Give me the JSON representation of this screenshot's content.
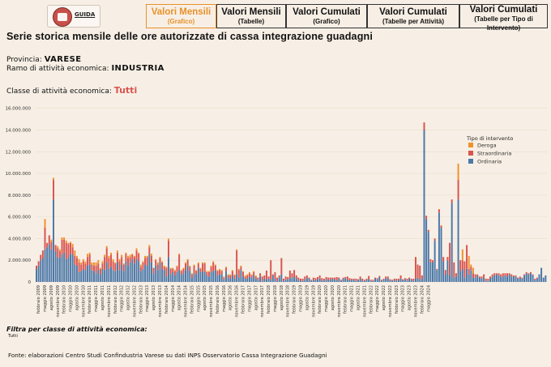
{
  "header": {
    "guida_label": "GUIDA",
    "tabs": [
      {
        "title": "Valori Mensili",
        "sub": "(Grafico)",
        "active": true
      },
      {
        "title": "Valori Mensili",
        "sub": "(Tabelle)",
        "active": false
      },
      {
        "title": "Valori Cumulati",
        "sub": "(Grafico)",
        "active": false
      },
      {
        "title": "Valori Cumulati",
        "sub": "(Tabelle per Attività)",
        "active": false
      },
      {
        "title": "Valori Cumulati",
        "sub": "(Tabelle per Tipo di Intervento)",
        "active": false
      }
    ]
  },
  "page_title": "Serie storica mensile delle ore autorizzate di cassa integrazione guadagni",
  "provincia": {
    "label": "Provincia:",
    "value": "VARESE"
  },
  "ramo": {
    "label": "Ramo di attività economica:",
    "value": "INDUSTRIA"
  },
  "classe": {
    "label": "Classe di attività economica:",
    "value": "Tutti"
  },
  "filter": {
    "label": "Filtra per classe di attività economica:",
    "value": "Tutti"
  },
  "source": "Fonte: elaborazioni Centro Studi Confindustria Varese su dati INPS Osservatorio Cassa Integrazione Guadagni",
  "colors": {
    "Deroga": "#f0922c",
    "Straordinaria": "#d9534f",
    "Ordinaria": "#4c78a8"
  },
  "chart_data": {
    "type": "bar",
    "stacked": true,
    "legend_title": "Tipo di intervento",
    "legend": [
      "Deroga",
      "Straordinaria",
      "Ordinaria"
    ],
    "y_ticks": [
      "0",
      "2.000.000",
      "4.000.000",
      "6.000.000",
      "8.000.000",
      "10.000.000",
      "12.000.000",
      "14.000.000",
      "16.000.000"
    ],
    "ylim": [
      0,
      16500000
    ],
    "start": "2009-01",
    "x_labels": [
      "febbraio 2009",
      "maggio 2009",
      "agosto 2009",
      "novembre 2009",
      "febbraio 2010",
      "maggio 2010",
      "agosto 2010",
      "novembre 2010",
      "febbraio 2011",
      "maggio 2011",
      "agosto 2011",
      "novembre 2011",
      "febbraio 2012",
      "maggio 2012",
      "agosto 2012",
      "novembre 2012",
      "febbraio 2013",
      "maggio 2013",
      "agosto 2013",
      "novembre 2013",
      "febbraio 2014",
      "maggio 2014",
      "agosto 2014",
      "novembre 2014",
      "febbraio 2015",
      "maggio 2015",
      "agosto 2015",
      "novembre 2015",
      "febbraio 2016",
      "maggio 2016",
      "agosto 2016",
      "novembre 2016",
      "febbraio 2017",
      "maggio 2017",
      "agosto 2017",
      "novembre 2017",
      "febbraio 2018",
      "maggio 2018",
      "agosto 2018",
      "novembre 2018",
      "febbraio 2019",
      "maggio 2019",
      "agosto 2019",
      "novembre 2019",
      "febbraio 2020",
      "maggio 2020",
      "agosto 2020",
      "novembre 2020",
      "febbraio 2021",
      "maggio 2021",
      "agosto 2021",
      "novembre 2021",
      "febbraio 2022",
      "maggio 2022",
      "agosto 2022",
      "novembre 2022",
      "febbraio 2023",
      "maggio 2023",
      "agosto 2023",
      "novembre 2023",
      "febbraio 2024",
      "maggio 2024"
    ],
    "series": [
      {
        "name": "Ordinaria",
        "values": [
          1200000,
          1500000,
          2000000,
          2200000,
          3000000,
          3200000,
          3500000,
          3000000,
          7600000,
          2800000,
          2300000,
          2200000,
          2500000,
          2700000,
          2100000,
          2300000,
          2600000,
          2500000,
          1600000,
          1500000,
          900000,
          1000000,
          1200000,
          1100000,
          1500000,
          1600000,
          1100000,
          1000000,
          800000,
          1100000,
          700000,
          1200000,
          1100000,
          1800000,
          1200000,
          1400000,
          1100000,
          1000000,
          1800000,
          1100000,
          1600000,
          1000000,
          1900000,
          1500000,
          1800000,
          2100000,
          1700000,
          2100000,
          1900000,
          1000000,
          1200000,
          1600000,
          1500000,
          2500000,
          1800000,
          800000,
          1500000,
          1100000,
          1800000,
          1200000,
          1100000,
          500000,
          2300000,
          700000,
          900000,
          600000,
          900000,
          1100000,
          700000,
          800000,
          1100000,
          1500000,
          1000000,
          400000,
          800000,
          700000,
          1300000,
          900000,
          1000000,
          900000,
          600000,
          500000,
          900000,
          1000000,
          1100000,
          600000,
          700000,
          700000,
          200000,
          1000000,
          400000,
          300000,
          600000,
          300000,
          700000,
          400000,
          1100000,
          500000,
          300000,
          300000,
          500000,
          400000,
          600000,
          300000,
          200000,
          500000,
          100000,
          300000,
          250000,
          300000,
          200000,
          600000,
          300000,
          100000,
          400000,
          700000,
          100000,
          200000,
          250000,
          350000,
          400000,
          500000,
          300000,
          200000,
          100000,
          100000,
          200000,
          400000,
          300000,
          100000,
          200000,
          150000,
          250000,
          300000,
          150000,
          100000,
          250000,
          200000,
          200000,
          300000,
          200000,
          150000,
          300000,
          100000,
          300000,
          350000,
          200000,
          150000,
          200000,
          200000,
          100000,
          150000,
          300000,
          100000,
          100000,
          200000,
          250000,
          100000,
          100000,
          300000,
          250000,
          450000,
          100000,
          200000,
          300000,
          400000,
          150000,
          100000,
          200000,
          100000,
          200000,
          300000,
          150000,
          250000,
          100000,
          300000,
          200000,
          100000,
          300000,
          400000,
          200000,
          300000,
          14000000,
          5800000,
          4600000,
          1800000,
          1800000,
          3800000,
          1100000,
          6400000,
          5000000,
          1900000,
          700000,
          2000000,
          600000,
          7300000,
          400000,
          500000,
          7600000,
          1000000,
          1200000,
          400000,
          1200000,
          700000,
          1100000,
          400000,
          400000,
          600000,
          400000,
          300000,
          400000,
          100000,
          100000,
          300000,
          500000,
          600000,
          700000,
          600000,
          500000,
          500000,
          600000,
          500000,
          700000,
          500000,
          500000,
          500000,
          300000,
          400000,
          300000,
          600000,
          800000,
          700000,
          800000,
          600000,
          200000,
          300000,
          700000,
          1300000,
          400000,
          600000
        ]
      },
      {
        "name": "Straordinaria",
        "values": [
          300000,
          400000,
          500000,
          700000,
          2000000,
          400000,
          800000,
          700000,
          1800000,
          600000,
          800000,
          600000,
          1400000,
          1200000,
          1500000,
          1200000,
          1000000,
          700000,
          800000,
          700000,
          900000,
          600000,
          700000,
          600000,
          800000,
          900000,
          500000,
          500000,
          700000,
          600000,
          500000,
          500000,
          1200000,
          1300000,
          1000000,
          1100000,
          800000,
          700000,
          900000,
          800000,
          700000,
          600000,
          700000,
          700000,
          500000,
          400000,
          600000,
          800000,
          700000,
          400000,
          600000,
          600000,
          800000,
          700000,
          600000,
          500000,
          500000,
          500000,
          400000,
          600000,
          300000,
          800000,
          1500000,
          500000,
          300000,
          400000,
          500000,
          1400000,
          300000,
          400000,
          600000,
          500000,
          400000,
          300000,
          700000,
          300000,
          400000,
          300000,
          700000,
          800000,
          300000,
          400000,
          500000,
          800000,
          400000,
          400000,
          400000,
          300000,
          200000,
          300000,
          200000,
          300000,
          400000,
          300000,
          2200000,
          700000,
          300000,
          400000,
          200000,
          300000,
          300000,
          200000,
          300000,
          200000,
          200000,
          300000,
          400000,
          300000,
          800000,
          200000,
          1800000,
          100000,
          600000,
          300000,
          200000,
          1500000,
          200000,
          300000,
          200000,
          700000,
          400000,
          600000,
          300000,
          200000,
          200000,
          200000,
          300000,
          200000,
          100000,
          100000,
          200000,
          200000,
          200000,
          300000,
          200000,
          200000,
          200000,
          200000,
          200000,
          100000,
          200000,
          300000,
          100000,
          100000,
          100000,
          100000,
          300000,
          200000,
          100000,
          100000,
          200000,
          100000,
          200000,
          200000,
          100000,
          100000,
          300000,
          100000,
          100000,
          100000,
          100000,
          100000,
          100000,
          100000,
          200000,
          100000,
          100000,
          100000,
          100000,
          200000,
          100000,
          300000,
          100000,
          100000,
          200000,
          100000,
          100000,
          200000,
          2000000,
          1200000,
          1300000,
          300000,
          700000,
          300000,
          200000,
          300000,
          200000,
          200000,
          100000,
          300000,
          200000,
          400000,
          400000,
          300000,
          3000000,
          300000,
          1400000,
          300000,
          1800000,
          1000000,
          800000,
          1500000,
          2200000,
          500000,
          300000,
          400000,
          300000,
          100000,
          100000,
          200000,
          300000,
          200000,
          200000,
          200000,
          200000,
          200000,
          100000,
          200000,
          200000,
          300000,
          200000,
          300000,
          100000,
          200000,
          100000,
          100000,
          100000,
          100000,
          100000,
          100000,
          100000,
          100000,
          100000,
          100000,
          100000,
          100000
        ]
      },
      {
        "name": "Deroga",
        "values": [
          0,
          0,
          0,
          0,
          800000,
          0,
          0,
          200000,
          200000,
          0,
          200000,
          200000,
          200000,
          200000,
          200000,
          100000,
          100000,
          300000,
          500000,
          200000,
          300000,
          200000,
          200000,
          200000,
          300000,
          200000,
          200000,
          300000,
          300000,
          300000,
          100000,
          200000,
          200000,
          200000,
          200000,
          200000,
          200000,
          100000,
          200000,
          200000,
          200000,
          100000,
          100000,
          200000,
          200000,
          100000,
          100000,
          200000,
          100000,
          200000,
          100000,
          200000,
          100000,
          200000,
          200000,
          0,
          100000,
          200000,
          100000,
          100000,
          100000,
          100000,
          200000,
          100000,
          100000,
          100000,
          100000,
          100000,
          100000,
          100000,
          100000,
          100000,
          100000,
          100000,
          100000,
          100000,
          100000,
          100000,
          100000,
          100000,
          100000,
          100000,
          100000,
          100000,
          100000,
          100000,
          100000,
          100000,
          100000,
          100000,
          100000,
          100000,
          100000,
          100000,
          100000,
          100000,
          100000,
          100000,
          100000,
          100000,
          100000,
          100000,
          100000,
          100000,
          0,
          0,
          0,
          0,
          0,
          0,
          0,
          0,
          0,
          0,
          0,
          0,
          0,
          0,
          0,
          0,
          0,
          0,
          0,
          0,
          0,
          0,
          0,
          0,
          0,
          0,
          0,
          0,
          0,
          0,
          0,
          0,
          0,
          0,
          0,
          0,
          0,
          0,
          0,
          0,
          0,
          0,
          0,
          0,
          0,
          0,
          0,
          0,
          0,
          0,
          0,
          0,
          0,
          0,
          0,
          0,
          0,
          0,
          0,
          0,
          0,
          0,
          0,
          0,
          0,
          0,
          0,
          0,
          0,
          0,
          0,
          0,
          0,
          0,
          0,
          0,
          0,
          0,
          0,
          0,
          0,
          0,
          0,
          0,
          0,
          0,
          0,
          0,
          0,
          0,
          0,
          0,
          0,
          0,
          1500000,
          0,
          1000000,
          0,
          0,
          1200000,
          200000,
          500000,
          0,
          0,
          0,
          0,
          0,
          0,
          0,
          0,
          0,
          0,
          0,
          0,
          0,
          0,
          0,
          0,
          0,
          0,
          0,
          0,
          0,
          0,
          0,
          0,
          0,
          0,
          0,
          0,
          0,
          0,
          0,
          0,
          0,
          0,
          0,
          0,
          0,
          0,
          0,
          0,
          0,
          0,
          0
        ]
      }
    ]
  }
}
